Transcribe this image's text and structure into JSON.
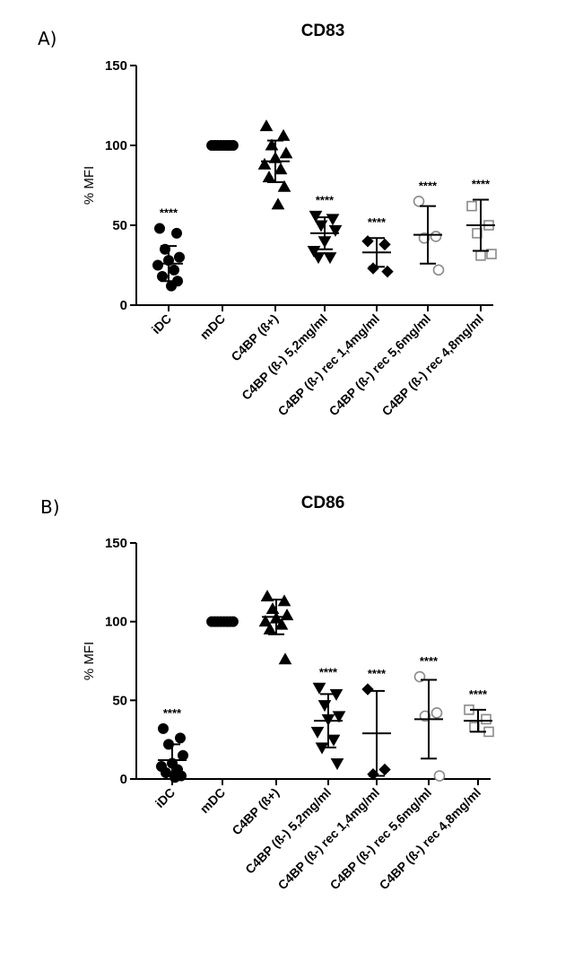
{
  "chart_data": [
    {
      "panel": "A)",
      "type": "scatter",
      "title": "CD83",
      "ylabel": "% MFI",
      "xlabel": "",
      "ylim": [
        0,
        150
      ],
      "yticks": [
        0,
        50,
        100,
        150
      ],
      "grid": false,
      "categories": [
        "iDC",
        "mDC",
        "C4BP (ß+)",
        "C4BP (ß-) 5,2mg/ml",
        "C4BP (ß-) rec 1,4mg/ml",
        "C4BP (ß-) rec 5,6mg/ml",
        "C4BP (ß-) rec 4,8mg/ml"
      ],
      "groups": [
        {
          "marker": "circle",
          "fill": "filled",
          "points": [
            48,
            45,
            35,
            30,
            28,
            25,
            22,
            18,
            15,
            12
          ],
          "mean": 26,
          "sd": 11,
          "significance": "****"
        },
        {
          "marker": "circle",
          "fill": "filled",
          "points": [
            100,
            100,
            100,
            100,
            100,
            100,
            100,
            100
          ],
          "mean": 100,
          "sd": 0,
          "significance": ""
        },
        {
          "marker": "triangle-up",
          "fill": "filled",
          "points": [
            112,
            106,
            100,
            95,
            92,
            88,
            85,
            80,
            74,
            63
          ],
          "mean": 90,
          "sd": 13,
          "significance": ""
        },
        {
          "marker": "triangle-down",
          "fill": "filled",
          "points": [
            56,
            54,
            50,
            47,
            40,
            34,
            30,
            30
          ],
          "mean": 45,
          "sd": 10,
          "significance": "****"
        },
        {
          "marker": "diamond",
          "fill": "filled",
          "points": [
            40,
            38,
            23,
            21
          ],
          "mean": 33,
          "sd": 9,
          "significance": "****"
        },
        {
          "marker": "circle",
          "fill": "open",
          "points": [
            65,
            43,
            42,
            22
          ],
          "mean": 44,
          "sd": 18,
          "significance": "****"
        },
        {
          "marker": "square",
          "fill": "open",
          "points": [
            62,
            50,
            45,
            32,
            31
          ],
          "mean": 50,
          "sd": 16,
          "significance": "****"
        }
      ]
    },
    {
      "panel": "B)",
      "type": "scatter",
      "title": "CD86",
      "ylabel": "% MFI",
      "xlabel": "",
      "ylim": [
        0,
        150
      ],
      "yticks": [
        0,
        50,
        100,
        150
      ],
      "grid": false,
      "categories": [
        "iDC",
        "mDC",
        "C4BP (ß+)",
        "C4BP (ß-) 5,2mg/ml",
        "C4BP (ß-) rec 1,4mg/ml",
        "C4BP (ß-) rec 5,6mg/ml",
        "C4BP (ß-) rec 4,8mg/ml"
      ],
      "groups": [
        {
          "marker": "circle",
          "fill": "filled",
          "points": [
            32,
            26,
            22,
            15,
            10,
            8,
            6,
            4,
            2,
            1
          ],
          "mean": 12,
          "sd": 10,
          "significance": "****"
        },
        {
          "marker": "circle",
          "fill": "filled",
          "points": [
            100,
            100,
            100,
            100,
            100,
            100,
            100,
            100
          ],
          "mean": 100,
          "sd": 0,
          "significance": ""
        },
        {
          "marker": "triangle-up",
          "fill": "filled",
          "points": [
            116,
            113,
            108,
            104,
            102,
            100,
            98,
            95,
            76
          ],
          "mean": 103,
          "sd": 11,
          "significance": ""
        },
        {
          "marker": "triangle-down",
          "fill": "filled",
          "points": [
            58,
            54,
            47,
            40,
            38,
            30,
            25,
            20,
            10
          ],
          "mean": 37,
          "sd": 17,
          "significance": "****"
        },
        {
          "marker": "diamond",
          "fill": "filled",
          "points": [
            57,
            6,
            3
          ],
          "mean": 29,
          "sd": 27,
          "significance": "****"
        },
        {
          "marker": "circle",
          "fill": "open",
          "points": [
            65,
            42,
            40,
            2
          ],
          "mean": 38,
          "sd": 25,
          "significance": "****"
        },
        {
          "marker": "square",
          "fill": "open",
          "points": [
            44,
            38,
            33,
            30
          ],
          "mean": 37,
          "sd": 7,
          "significance": "****"
        }
      ]
    }
  ]
}
